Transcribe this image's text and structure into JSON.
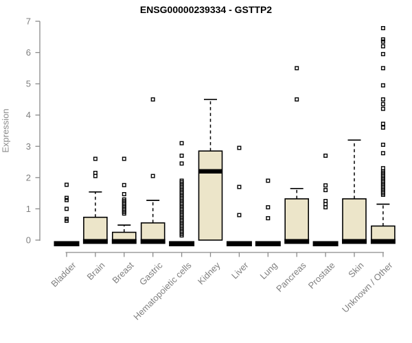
{
  "title": "ENSG00000239334 - GSTTP2",
  "colors": {
    "box_fill": "#ECE5C9",
    "box_border": "#000000",
    "median": "#000000",
    "axis_line": "#8a8a8a",
    "axis_label": "#7f7f7f",
    "title": "#000000",
    "background": "#ffffff"
  },
  "chart_data": {
    "type": "boxplot",
    "title": "ENSG00000239334 - GSTTP2",
    "xlabel": "",
    "ylabel": "Expression",
    "ylim": [
      0,
      7
    ],
    "yticks": [
      0,
      1,
      2,
      3,
      4,
      5,
      6,
      7
    ],
    "grid": false,
    "legend": false,
    "categories": [
      "Bladder",
      "Brain",
      "Breast",
      "Gastric",
      "Hematopoietic cells",
      "Kidney",
      "Liver",
      "Lung",
      "Pancreas",
      "Prostate",
      "Skin",
      "Unknown / Other"
    ],
    "series": [
      {
        "name": "Bladder",
        "q1": 0,
        "median": 0,
        "q3": 0,
        "whisker_low": 0,
        "whisker_high": null,
        "outliers": [
          0.62,
          0.68,
          1.0,
          1.28,
          1.35,
          1.77
        ]
      },
      {
        "name": "Brain",
        "q1": 0,
        "median": 0,
        "q3": 0.73,
        "whisker_low": 0,
        "whisker_high": 1.54,
        "outliers": [
          2.05,
          2.15,
          2.6
        ]
      },
      {
        "name": "Breast",
        "q1": 0,
        "median": 0,
        "q3": 0.25,
        "whisker_low": 0,
        "whisker_high": 0.48,
        "outliers": [
          0.85,
          0.9,
          0.95,
          1.0,
          1.05,
          1.1,
          1.15,
          1.2,
          1.25,
          1.3,
          1.47,
          1.76,
          2.6
        ]
      },
      {
        "name": "Gastric",
        "q1": 0,
        "median": 0,
        "q3": 0.55,
        "whisker_low": 0,
        "whisker_high": 1.27,
        "outliers": [
          2.05,
          4.5
        ]
      },
      {
        "name": "Hematopoietic cells",
        "q1": 0,
        "median": 0,
        "q3": 0,
        "whisker_low": 0,
        "whisker_high": null,
        "outliers": [
          0.15,
          0.2,
          0.25,
          0.3,
          0.35,
          0.4,
          0.45,
          0.5,
          0.55,
          0.6,
          0.65,
          0.7,
          0.75,
          0.8,
          0.85,
          0.9,
          0.95,
          1.0,
          1.05,
          1.1,
          1.15,
          1.2,
          1.25,
          1.3,
          1.35,
          1.4,
          1.45,
          1.5,
          1.55,
          1.6,
          1.65,
          1.7,
          1.75,
          1.8,
          1.85,
          1.9,
          2.45,
          2.7,
          3.1
        ]
      },
      {
        "name": "Kidney",
        "q1": 0,
        "median": 2.2,
        "q3": 2.85,
        "whisker_low": 0,
        "whisker_high": 4.5,
        "outliers": []
      },
      {
        "name": "Liver",
        "q1": 0,
        "median": 0,
        "q3": 0,
        "whisker_low": 0,
        "whisker_high": null,
        "outliers": [
          0.8,
          1.7,
          2.95
        ]
      },
      {
        "name": "Lung",
        "q1": 0,
        "median": 0,
        "q3": 0,
        "whisker_low": 0,
        "whisker_high": null,
        "outliers": [
          0.7,
          1.05,
          1.9
        ]
      },
      {
        "name": "Pancreas",
        "q1": 0,
        "median": 0,
        "q3": 1.32,
        "whisker_low": 0,
        "whisker_high": 1.65,
        "outliers": [
          4.5,
          5.5
        ]
      },
      {
        "name": "Prostate",
        "q1": 0,
        "median": 0,
        "q3": 0,
        "whisker_low": 0,
        "whisker_high": null,
        "outliers": [
          1.05,
          1.15,
          1.25,
          1.6,
          1.75,
          2.7
        ]
      },
      {
        "name": "Skin",
        "q1": 0,
        "median": 0,
        "q3": 1.32,
        "whisker_low": 0,
        "whisker_high": 3.2,
        "outliers": []
      },
      {
        "name": "Unknown / Other",
        "q1": 0,
        "median": 0,
        "q3": 0.45,
        "whisker_low": 0,
        "whisker_high": 1.15,
        "outliers": [
          1.45,
          1.5,
          1.55,
          1.6,
          1.65,
          1.7,
          1.75,
          1.8,
          1.85,
          1.9,
          1.95,
          2.0,
          2.05,
          2.1,
          2.15,
          2.2,
          2.3,
          2.78,
          3.05,
          3.6,
          3.72,
          4.2,
          4.35,
          4.5,
          4.95,
          5.5,
          5.95,
          6.2,
          6.35,
          6.42,
          6.78
        ]
      }
    ]
  }
}
